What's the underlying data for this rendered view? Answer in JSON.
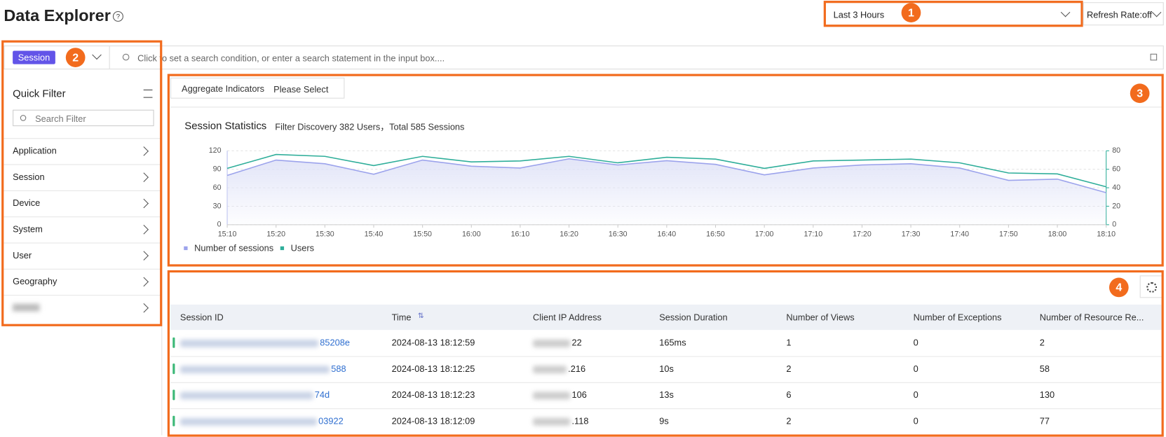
{
  "header": {
    "title": "Data Explorer",
    "time_range": "Last 3 Hours",
    "refresh": "Refresh Rate:off"
  },
  "badges": [
    "1",
    "2",
    "3",
    "4"
  ],
  "search": {
    "type": "Session",
    "placeholder": "Click to set a search condition, or enter a search statement in the input box...."
  },
  "quick_filter": {
    "title": "Quick Filter",
    "search_placeholder": "Search Filter",
    "items": [
      "Application",
      "Session",
      "Device",
      "System",
      "User",
      "Geography"
    ]
  },
  "aggregate": {
    "label": "Aggregate Indicators",
    "value": "Please Select"
  },
  "chart_data": {
    "type": "line",
    "title": "Session Statistics",
    "subtitle": "Filter Discovery 382 Users，Total 585 Sessions",
    "categories": [
      "15:10",
      "15:20",
      "15:30",
      "15:40",
      "15:50",
      "16:00",
      "16:10",
      "16:20",
      "16:30",
      "16:40",
      "16:50",
      "17:00",
      "17:10",
      "17:20",
      "17:30",
      "17:40",
      "17:50",
      "18:00",
      "18:10"
    ],
    "series": [
      {
        "name": "Number of sessions",
        "color": "#9ca3ec",
        "axis": "y",
        "values": [
          80,
          105,
          99,
          82,
          105,
          95,
          92,
          107,
          97,
          104,
          98,
          81,
          92,
          97,
          99,
          92,
          72,
          74,
          52
        ]
      },
      {
        "name": "Users",
        "color": "#2fae9a",
        "axis": "y2",
        "values": [
          61,
          76,
          74,
          64,
          74,
          68,
          69,
          74,
          67,
          73,
          71,
          61,
          69,
          70,
          71,
          67,
          56,
          55,
          41
        ]
      }
    ],
    "ylim": [
      0,
      120
    ],
    "yticks": [
      0,
      30,
      60,
      90,
      120
    ],
    "y2lim": [
      0,
      80
    ],
    "y2ticks": [
      0,
      20,
      40,
      60,
      80
    ],
    "grid": true,
    "legend": "bottom-left"
  },
  "table": {
    "columns": [
      "Session ID",
      "Time",
      "Client IP Address",
      "Session Duration",
      "Number of Views",
      "Number of Exceptions",
      "Number of Resource Re..."
    ],
    "rows": [
      {
        "session_id": "85208e",
        "time": "2024-08-13 18:12:59",
        "client_ip": "22",
        "duration": "165ms",
        "views": 1,
        "exceptions": 0,
        "resources": 2
      },
      {
        "session_id": "588",
        "time": "2024-08-13 18:12:25",
        "client_ip": ".216",
        "duration": "10s",
        "views": 2,
        "exceptions": 0,
        "resources": 58
      },
      {
        "session_id": "74d",
        "time": "2024-08-13 18:12:23",
        "client_ip": "106",
        "duration": "13s",
        "views": 6,
        "exceptions": 0,
        "resources": 130
      },
      {
        "session_id": "03922",
        "time": "2024-08-13 18:12:09",
        "client_ip": ".118",
        "duration": "9s",
        "views": 2,
        "exceptions": 0,
        "resources": 77
      }
    ]
  }
}
